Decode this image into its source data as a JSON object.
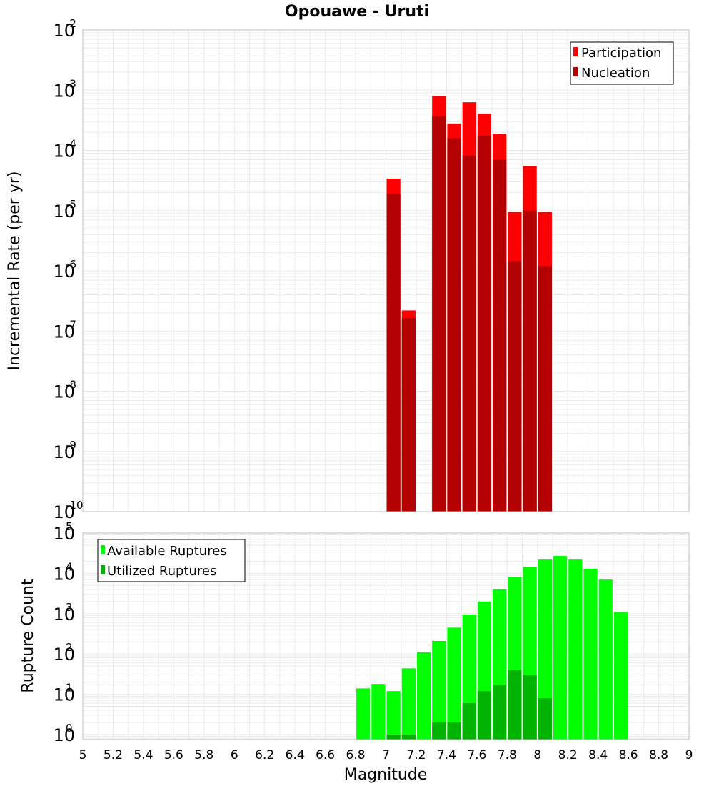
{
  "chart_data": [
    {
      "type": "bar",
      "title": "Opouawe - Uruti",
      "xlabel": "Magnitude",
      "ylabel": "Incremental Rate (per yr)",
      "yscale": "log",
      "ylim": [
        1e-10,
        0.01
      ],
      "xlim": [
        5,
        9
      ],
      "legend_position": "top-right",
      "bin_width": 0.1,
      "series": [
        {
          "name": "Participation",
          "color": "#ff0000",
          "x": [
            7.05,
            7.15,
            7.35,
            7.45,
            7.55,
            7.65,
            7.75,
            7.85,
            7.95,
            8.05
          ],
          "values": [
            3.4e-05,
            2.2e-07,
            0.0008,
            0.00028,
            0.00063,
            0.00041,
            0.00019,
            9.5e-06,
            5.5e-05,
            9.5e-06
          ]
        },
        {
          "name": "Nucleation",
          "color": "#b30000",
          "x": [
            7.05,
            7.15,
            7.35,
            7.45,
            7.55,
            7.65,
            7.75,
            7.85,
            7.95,
            8.05
          ],
          "values": [
            1.9e-05,
            1.65e-07,
            0.00037,
            0.00016,
            8.2e-05,
            0.000175,
            7e-05,
            1.45e-06,
            1e-05,
            1.2e-06
          ]
        }
      ]
    },
    {
      "type": "bar",
      "title": "",
      "xlabel": "Magnitude",
      "ylabel": "Rupture Count",
      "yscale": "log",
      "ylim": [
        0.75,
        100000.0
      ],
      "xlim": [
        5,
        9
      ],
      "legend_position": "top-left",
      "bin_width": 0.1,
      "series": [
        {
          "name": "Available Ruptures",
          "color": "#00ff00",
          "x": [
            6.85,
            6.95,
            7.05,
            7.15,
            7.25,
            7.35,
            7.45,
            7.55,
            7.65,
            7.75,
            7.85,
            7.95,
            8.05,
            8.15,
            8.25,
            8.35,
            8.45,
            8.55
          ],
          "values": [
            14,
            18,
            12,
            44,
            110,
            210,
            450,
            950,
            2000,
            4000,
            8000,
            14500,
            22000,
            27000,
            22000,
            13000,
            7000,
            1100
          ]
        },
        {
          "name": "Utilized Ruptures",
          "color": "#00b300",
          "x": [
            7.05,
            7.15,
            7.35,
            7.45,
            7.55,
            7.65,
            7.75,
            7.85,
            7.95,
            8.05
          ],
          "values": [
            1,
            1,
            2,
            2,
            6,
            12,
            17,
            40,
            30,
            8
          ]
        }
      ]
    }
  ],
  "x_ticks": [
    "5",
    "5.2",
    "5.4",
    "5.6",
    "5.8",
    "6",
    "6.2",
    "6.4",
    "6.6",
    "6.8",
    "7",
    "7.2",
    "7.4",
    "7.6",
    "7.8",
    "8",
    "8.2",
    "8.4",
    "8.6",
    "8.8",
    "9"
  ],
  "top_y_ticks": [
    {
      "base": "10",
      "exp": "-2",
      "value": 0.01
    },
    {
      "base": "10",
      "exp": "-3",
      "value": 0.001
    },
    {
      "base": "10",
      "exp": "-4",
      "value": 0.0001
    },
    {
      "base": "10",
      "exp": "-5",
      "value": 1e-05
    },
    {
      "base": "10",
      "exp": "-6",
      "value": 1e-06
    },
    {
      "base": "10",
      "exp": "-7",
      "value": 1e-07
    },
    {
      "base": "10",
      "exp": "-8",
      "value": 1e-08
    },
    {
      "base": "10",
      "exp": "-9",
      "value": 1e-09
    },
    {
      "base": "10",
      "exp": "-10",
      "value": 1e-10
    }
  ],
  "bottom_y_ticks": [
    {
      "base": "10",
      "exp": "5",
      "value": 100000.0
    },
    {
      "base": "10",
      "exp": "4",
      "value": 10000.0
    },
    {
      "base": "10",
      "exp": "3",
      "value": 1000.0
    },
    {
      "base": "10",
      "exp": "2",
      "value": 100.0
    },
    {
      "base": "10",
      "exp": "1",
      "value": 10.0
    },
    {
      "base": "10",
      "exp": "0",
      "value": 1
    }
  ],
  "colors": {
    "grid": "#ebebeb",
    "frame": "#c0c0c0",
    "bar_edge": "#ffffff"
  }
}
